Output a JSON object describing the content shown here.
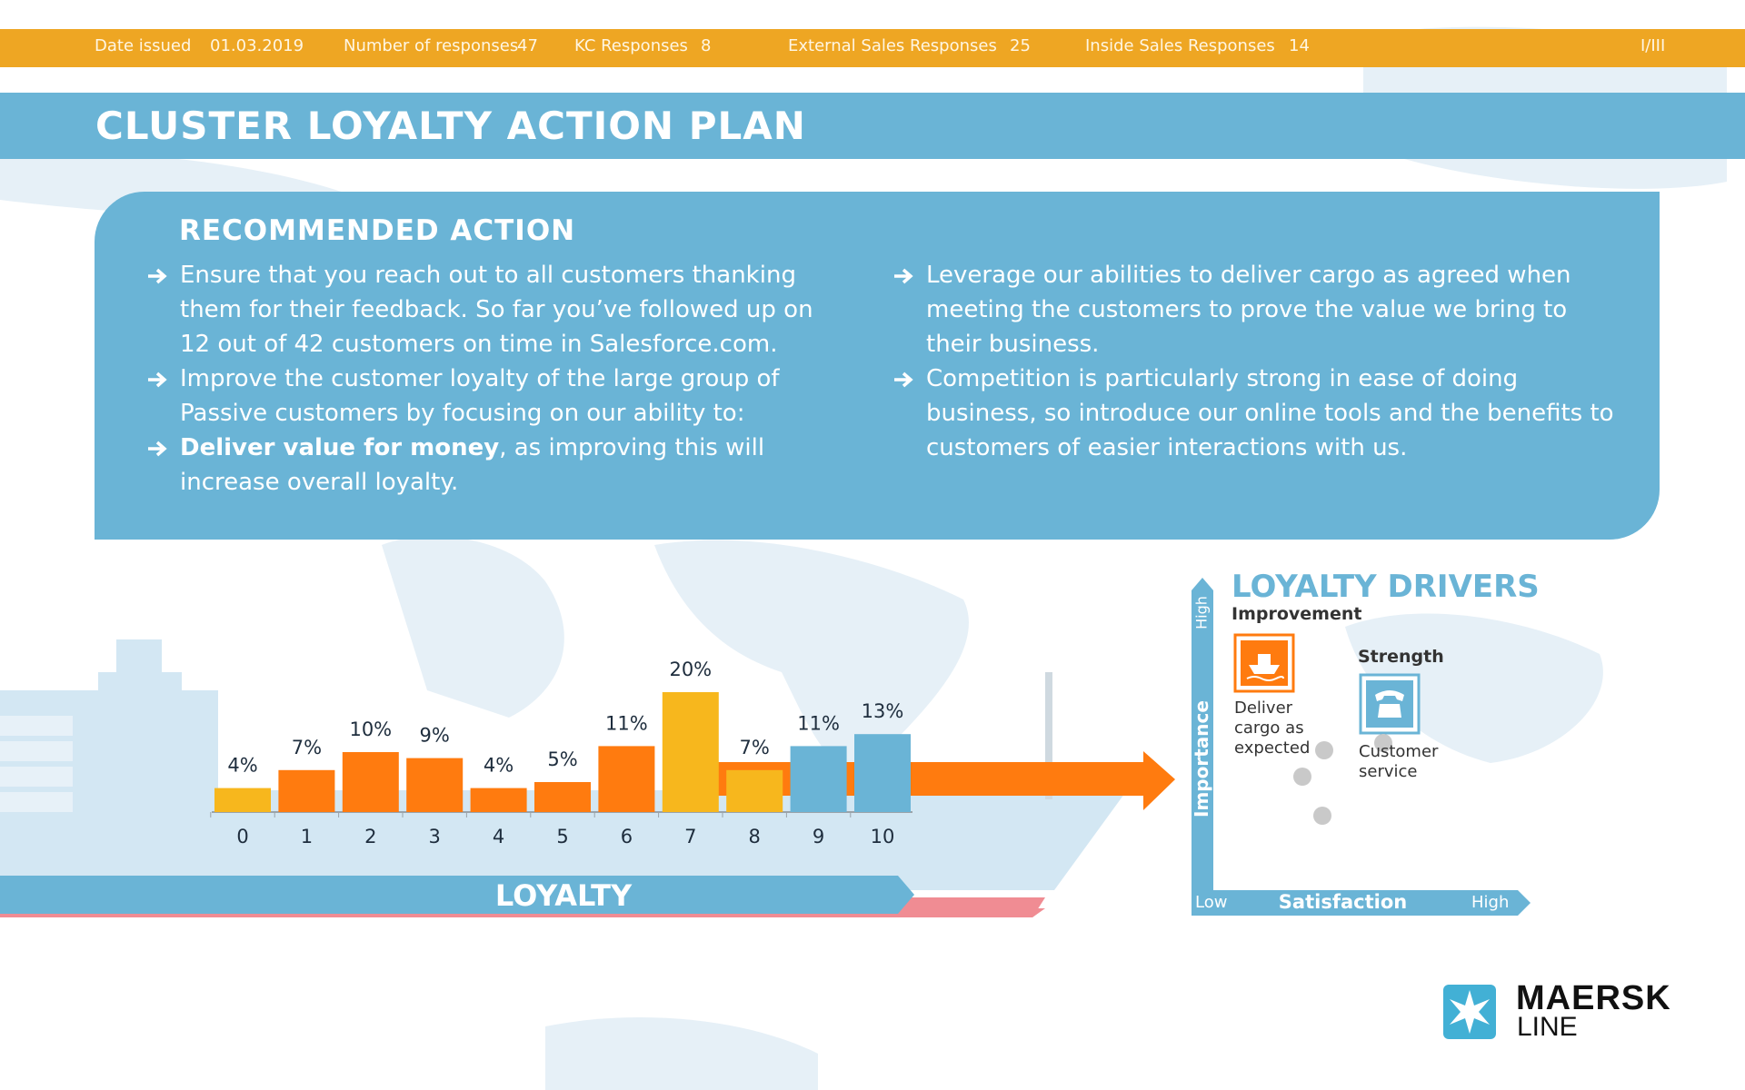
{
  "header": {
    "fields": [
      {
        "label": "Date issued",
        "value": "01.03.2019"
      },
      {
        "label": "Number  of responses",
        "value": 47
      },
      {
        "label": "KC Responses",
        "value": 8
      },
      {
        "label": "External Sales Responses",
        "value": 25
      },
      {
        "label": "Inside Sales Responses",
        "value": 14
      }
    ],
    "page": "I/III"
  },
  "title": "CLUSTER LOYALTY ACTION PLAN",
  "recommended_action": {
    "title": "RECOMMENDED  ACTION",
    "left": [
      {
        "text": "Ensure that you reach out to all customers thanking them for their feedback. So far you’ve followed up on 12 out of 42 customers on time in Salesforce.com."
      },
      {
        "text": "Improve the customer loyalty of the large group of Passive customers by focusing on our ability to:"
      },
      {
        "bold": "Deliver value for money",
        "text": ", as improving this will increase overall loyalty."
      }
    ],
    "right": [
      {
        "text": "Leverage our abilities to deliver cargo as agreed when meeting the customers to prove the value we bring to their business."
      },
      {
        "text": "Competition is particularly strong in ease of doing business, so introduce our online tools and the benefits to customers of easier interactions with us."
      }
    ]
  },
  "chart_data": {
    "type": "bar",
    "x_label": "LOYALTY",
    "categories": [
      "0",
      "1",
      "2",
      "3",
      "4",
      "5",
      "6",
      "7",
      "8",
      "9",
      "10"
    ],
    "values": [
      4,
      7,
      10,
      9,
      4,
      5,
      11,
      20,
      7,
      11,
      13
    ],
    "value_labels": [
      "4%",
      "7%",
      "10%",
      "9%",
      "4%",
      "5%",
      "11%",
      "20%",
      "7%",
      "11%",
      "13%"
    ],
    "colors": [
      "#f7b71d",
      "#ff7b0f",
      "#ff7b0f",
      "#ff7b0f",
      "#ff7b0f",
      "#ff7b0f",
      "#ff7b0f",
      "#f7b71d",
      "#f7b71d",
      "#6ab4d6",
      "#6ab4d6"
    ]
  },
  "loyalty_drivers": {
    "title": "LOYALTY DRIVERS",
    "improvement": {
      "label": "Improvement",
      "item": "Deliver\ncargo as\nexpected"
    },
    "strength": {
      "label": "Strength",
      "item": "Customer\nservice"
    },
    "y_axis": {
      "label": "Importance",
      "high": "High"
    },
    "x_axis": {
      "label": "Satisfaction",
      "low": "Low",
      "high": "High"
    }
  },
  "logo": {
    "line1": "MAERSK",
    "line2": "LINE"
  }
}
